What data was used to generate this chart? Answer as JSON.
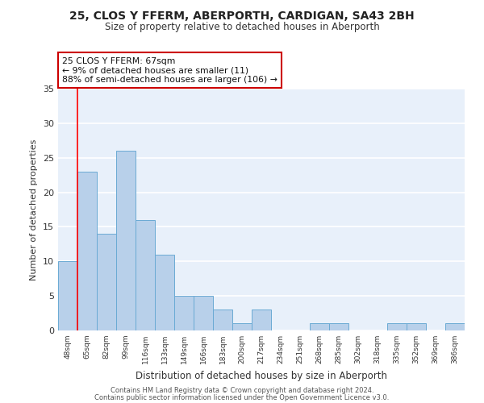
{
  "title": "25, CLOS Y FFERM, ABERPORTH, CARDIGAN, SA43 2BH",
  "subtitle": "Size of property relative to detached houses in Aberporth",
  "xlabel": "Distribution of detached houses by size in Aberporth",
  "ylabel": "Number of detached properties",
  "bar_values": [
    10,
    23,
    14,
    26,
    16,
    11,
    5,
    5,
    3,
    1,
    3,
    0,
    0,
    1,
    1,
    0,
    0,
    1,
    1,
    0,
    1
  ],
  "x_labels": [
    "48sqm",
    "65sqm",
    "82sqm",
    "99sqm",
    "116sqm",
    "133sqm",
    "149sqm",
    "166sqm",
    "183sqm",
    "200sqm",
    "217sqm",
    "234sqm",
    "251sqm",
    "268sqm",
    "285sqm",
    "302sqm",
    "318sqm",
    "335sqm",
    "352sqm",
    "369sqm",
    "386sqm"
  ],
  "bar_color": "#b8d0ea",
  "bar_edge_color": "#6aaad4",
  "background_color": "#e8f0fa",
  "grid_color": "#ffffff",
  "red_line_x": 0.5,
  "annotation_text": "25 CLOS Y FFERM: 67sqm\n← 9% of detached houses are smaller (11)\n88% of semi-detached houses are larger (106) →",
  "annotation_box_color": "#ffffff",
  "annotation_box_edge_color": "#cc0000",
  "ylim": [
    0,
    35
  ],
  "yticks": [
    0,
    5,
    10,
    15,
    20,
    25,
    30,
    35
  ],
  "footer_line1": "Contains HM Land Registry data © Crown copyright and database right 2024.",
  "footer_line2": "Contains public sector information licensed under the Open Government Licence v3.0."
}
